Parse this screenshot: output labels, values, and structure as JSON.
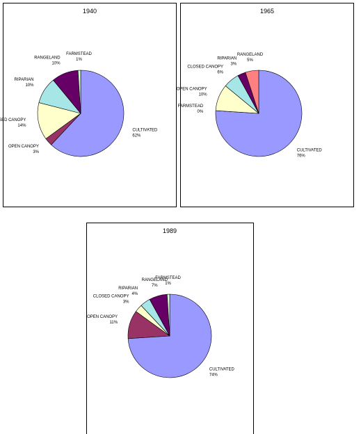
{
  "chart_data": [
    {
      "type": "pie",
      "title": "1940",
      "categories": [
        "CULTIVATED",
        "OPEN CANOPY",
        "CLOSED CANOPY",
        "RIPARIAN",
        "RANGELAND",
        "FARMSTEAD"
      ],
      "values": [
        62,
        3,
        14,
        10,
        10,
        1
      ],
      "value_labels": [
        "62%",
        "3%",
        "14%",
        "10%",
        "10%",
        "1%"
      ],
      "colors": [
        "#9999ff",
        "#993366",
        "#ffffcc",
        "#a6e6e6",
        "#660066",
        "#ccffcc"
      ]
    },
    {
      "type": "pie",
      "title": "1965",
      "categories": [
        "CULTIVATED",
        "FARMSTEAD",
        "OPEN CANOPY",
        "CLOSED CANOPY",
        "RIPARIAN",
        "RANGELAND"
      ],
      "values": [
        76,
        0,
        10,
        6,
        3,
        5
      ],
      "value_labels": [
        "76%",
        "0%",
        "10%",
        "6%",
        "3%",
        "5%"
      ],
      "colors": [
        "#9999ff",
        "#993366",
        "#ffffcc",
        "#a6e6e6",
        "#660066",
        "#ff8080"
      ]
    },
    {
      "type": "pie",
      "title": "1989",
      "categories": [
        "CULTIVATED",
        "OPEN CANOPY",
        "CLOSED CANOPY",
        "RIPARIAN",
        "RANGELAND",
        "FARMSTEAD"
      ],
      "values": [
        74,
        11,
        3,
        4,
        7,
        1
      ],
      "value_labels": [
        "74%",
        "11%",
        "3%",
        "4%",
        "7%",
        "1%"
      ],
      "colors": [
        "#9999ff",
        "#993366",
        "#ffffcc",
        "#a6e6e6",
        "#660066",
        "#ccffcc"
      ]
    }
  ]
}
